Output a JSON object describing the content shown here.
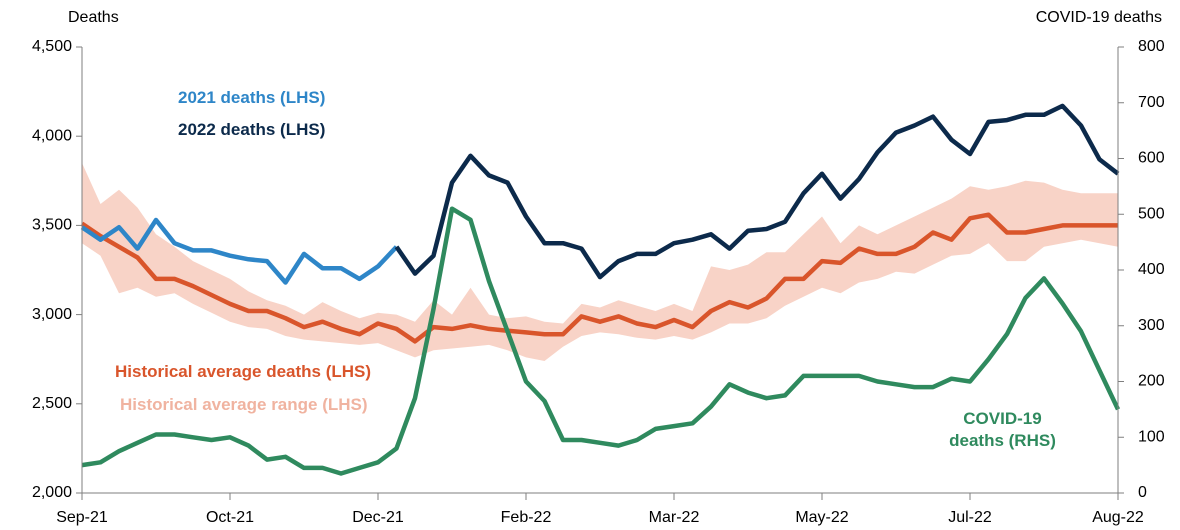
{
  "chart_data": {
    "type": "line",
    "ylabel": "Deaths",
    "y2label": "COVID-19 deaths",
    "categories": [
      "Sep-21",
      null,
      null,
      null,
      null,
      null,
      null,
      null,
      "Oct-21",
      null,
      null,
      null,
      null,
      null,
      null,
      null,
      "Dec-21",
      null,
      null,
      null,
      null,
      null,
      null,
      null,
      "Feb-22",
      null,
      null,
      null,
      null,
      null,
      null,
      null,
      "Mar-22",
      null,
      null,
      null,
      null,
      null,
      null,
      null,
      "May-22",
      null,
      null,
      null,
      null,
      null,
      null,
      null,
      "Jul-22",
      null,
      null,
      null,
      null,
      null,
      null,
      null,
      "Aug-22"
    ],
    "ylim": [
      2000,
      4500
    ],
    "yticks": [
      {
        "value": 2000,
        "label": "2,000"
      },
      {
        "value": 2500,
        "label": "2,500"
      },
      {
        "value": 3000,
        "label": "3,000"
      },
      {
        "value": 3500,
        "label": "3,500"
      },
      {
        "value": 4000,
        "label": "4,000"
      },
      {
        "value": 4500,
        "label": "4,500"
      }
    ],
    "y2lim": [
      0,
      800
    ],
    "y2ticks": [
      0,
      100,
      200,
      300,
      400,
      500,
      600,
      700,
      800
    ],
    "series": [
      {
        "name": "Historical average range (LHS)",
        "color": "#f8d3c7",
        "high": [
          3850,
          3620,
          3700,
          3600,
          3450,
          3380,
          3300,
          3250,
          3200,
          3130,
          3080,
          3050,
          3000,
          3070,
          3020,
          2980,
          3010,
          3000,
          2960,
          3080,
          3000,
          3150,
          3000,
          2980,
          2990,
          2960,
          2950,
          3060,
          3040,
          3080,
          3050,
          3020,
          3060,
          3020,
          3270,
          3250,
          3280,
          3350,
          3350,
          3450,
          3550,
          3400,
          3500,
          3450,
          3500,
          3550,
          3600,
          3650,
          3720,
          3700,
          3720,
          3750,
          3740,
          3700,
          3680,
          3680,
          3680
        ],
        "low": [
          3400,
          3330,
          3120,
          3150,
          3100,
          3120,
          3060,
          3010,
          2960,
          2930,
          2920,
          2880,
          2860,
          2850,
          2840,
          2830,
          2840,
          2800,
          2760,
          2800,
          2810,
          2820,
          2830,
          2800,
          2760,
          2740,
          2820,
          2880,
          2900,
          2890,
          2870,
          2860,
          2880,
          2860,
          2900,
          2950,
          2950,
          2980,
          3050,
          3100,
          3150,
          3120,
          3180,
          3200,
          3240,
          3230,
          3280,
          3330,
          3340,
          3400,
          3300,
          3300,
          3380,
          3400,
          3420,
          3400,
          3380
        ]
      },
      {
        "name": "Historical average deaths (LHS)",
        "color": "#d9552b",
        "values": [
          3510,
          3440,
          3380,
          3320,
          3200,
          3200,
          3160,
          3110,
          3060,
          3020,
          3020,
          2980,
          2930,
          2960,
          2920,
          2890,
          2950,
          2920,
          2850,
          2930,
          2920,
          2940,
          2920,
          2910,
          2900,
          2890,
          2890,
          2990,
          2960,
          2990,
          2950,
          2930,
          2970,
          2930,
          3020,
          3070,
          3040,
          3090,
          3200,
          3200,
          3300,
          3290,
          3370,
          3340,
          3340,
          3380,
          3460,
          3420,
          3540,
          3560,
          3460,
          3460,
          3480,
          3500,
          3500,
          3500,
          3500
        ]
      },
      {
        "name": "2021 deaths (LHS)",
        "color": "#2e86c8",
        "values": [
          3490,
          3420,
          3490,
          3370,
          3530,
          3400,
          3360,
          3360,
          3330,
          3310,
          3300,
          3180,
          3340,
          3260,
          3260,
          3200,
          3270,
          3380,
          null,
          null,
          null,
          null,
          null,
          null,
          null,
          null,
          null,
          null,
          null,
          null,
          null,
          null,
          null,
          null,
          null,
          null,
          null,
          null,
          null,
          null,
          null,
          null,
          null,
          null,
          null,
          null,
          null,
          null,
          null,
          null,
          null,
          null,
          null,
          null,
          null,
          null,
          null
        ]
      },
      {
        "name": "2022 deaths (LHS)",
        "color": "#0c2a4b",
        "values": [
          null,
          null,
          null,
          null,
          null,
          null,
          null,
          null,
          null,
          null,
          null,
          null,
          null,
          null,
          null,
          null,
          null,
          3380,
          3230,
          3330,
          3740,
          3890,
          3780,
          3740,
          3550,
          3400,
          3400,
          3370,
          3210,
          3300,
          3340,
          3340,
          3400,
          3420,
          3450,
          3370,
          3470,
          3480,
          3520,
          3680,
          3790,
          3650,
          3760,
          3910,
          4020,
          4060,
          4110,
          3980,
          3900,
          4080,
          4090,
          4120,
          4120,
          4170,
          4060,
          3870,
          3790
        ]
      },
      {
        "name": "COVID-19 deaths (RHS)",
        "color": "#2f8a5e",
        "axis": "y2",
        "values": [
          50,
          55,
          75,
          90,
          105,
          105,
          100,
          95,
          100,
          85,
          60,
          65,
          45,
          45,
          35,
          45,
          55,
          80,
          170,
          330,
          510,
          490,
          380,
          290,
          200,
          165,
          95,
          95,
          90,
          85,
          95,
          115,
          120,
          125,
          155,
          195,
          180,
          170,
          175,
          210,
          210,
          210,
          210,
          200,
          195,
          190,
          190,
          205,
          200,
          240,
          285,
          350,
          385,
          340,
          290,
          220,
          150
        ]
      }
    ]
  }
}
